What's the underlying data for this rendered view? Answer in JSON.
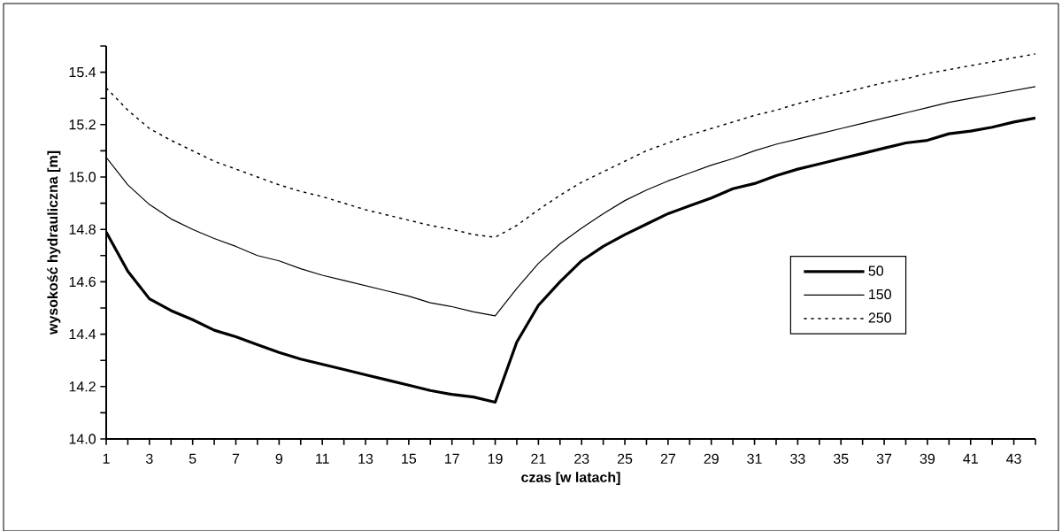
{
  "chart_data": {
    "type": "line",
    "xlabel": "czas [w latach]",
    "ylabel": "wysokość hydrauliczna [m]",
    "x": [
      1,
      2,
      3,
      4,
      5,
      6,
      7,
      8,
      9,
      10,
      11,
      12,
      13,
      14,
      15,
      16,
      17,
      18,
      19,
      20,
      21,
      22,
      23,
      24,
      25,
      26,
      27,
      28,
      29,
      30,
      31,
      32,
      33,
      34,
      35,
      36,
      37,
      38,
      39,
      40,
      41,
      42,
      43,
      44
    ],
    "xlim": [
      1,
      44
    ],
    "xticks": [
      1,
      {
        "value": 2,
        "label": null
      },
      3,
      {
        "value": 4,
        "label": null
      },
      5,
      {
        "value": 6,
        "label": null
      },
      7,
      {
        "value": 8,
        "label": null
      },
      9,
      {
        "value": 10,
        "label": null
      },
      11,
      {
        "value": 12,
        "label": null
      },
      13,
      {
        "value": 14,
        "label": null
      },
      15,
      {
        "value": 16,
        "label": null
      },
      17,
      {
        "value": 18,
        "label": null
      },
      19,
      {
        "value": 20,
        "label": null
      },
      21,
      {
        "value": 22,
        "label": null
      },
      23,
      {
        "value": 24,
        "label": null
      },
      25,
      {
        "value": 26,
        "label": null
      },
      27,
      {
        "value": 28,
        "label": null
      },
      29,
      {
        "value": 30,
        "label": null
      },
      31,
      {
        "value": 32,
        "label": null
      },
      33,
      {
        "value": 34,
        "label": null
      },
      35,
      {
        "value": 36,
        "label": null
      },
      37,
      {
        "value": 38,
        "label": null
      },
      39,
      {
        "value": 40,
        "label": null
      },
      41,
      {
        "value": 42,
        "label": null
      },
      43,
      {
        "value": 44,
        "label": null
      }
    ],
    "ylim": [
      14.0,
      15.5
    ],
    "yticks": [
      {
        "value": 14.0,
        "label": "14.0"
      },
      {
        "value": 14.1,
        "label": null
      },
      {
        "value": 14.2,
        "label": "14.2"
      },
      {
        "value": 14.3,
        "label": null
      },
      {
        "value": 14.4,
        "label": "14.4"
      },
      {
        "value": 14.5,
        "label": null
      },
      {
        "value": 14.6,
        "label": "14.6"
      },
      {
        "value": 14.7,
        "label": null
      },
      {
        "value": 14.8,
        "label": "14.8"
      },
      {
        "value": 14.9,
        "label": null
      },
      {
        "value": 15.0,
        "label": "15.0"
      },
      {
        "value": 15.1,
        "label": null
      },
      {
        "value": 15.2,
        "label": "15.2"
      },
      {
        "value": 15.3,
        "label": null
      },
      {
        "value": 15.4,
        "label": "15.4"
      },
      {
        "value": 15.5,
        "label": null
      }
    ],
    "legend": "right",
    "grid": false,
    "series": [
      {
        "name": "50",
        "color": "#000000",
        "line_style": "solid",
        "values": [
          14.79,
          14.64,
          14.535,
          14.49,
          14.455,
          14.415,
          14.39,
          14.36,
          14.33,
          14.305,
          14.285,
          14.265,
          14.245,
          14.225,
          14.205,
          14.185,
          14.17,
          14.16,
          14.14,
          14.37,
          14.51,
          14.6,
          14.68,
          14.735,
          14.78,
          14.82,
          14.86,
          14.89,
          14.92,
          14.955,
          14.975,
          15.005,
          15.03,
          15.05,
          15.07,
          15.09,
          15.11,
          15.13,
          15.14,
          15.165,
          15.175,
          15.19,
          15.21,
          15.225
        ]
      },
      {
        "name": "150",
        "color": "#000000",
        "line_style": "solid",
        "values": [
          15.075,
          14.97,
          14.895,
          14.84,
          14.8,
          14.765,
          14.735,
          14.7,
          14.68,
          14.65,
          14.625,
          14.605,
          14.585,
          14.565,
          14.545,
          14.52,
          14.505,
          14.485,
          14.47,
          14.575,
          14.67,
          14.745,
          14.805,
          14.86,
          14.91,
          14.95,
          14.985,
          15.015,
          15.045,
          15.07,
          15.1,
          15.125,
          15.145,
          15.165,
          15.185,
          15.205,
          15.225,
          15.245,
          15.265,
          15.285,
          15.3,
          15.315,
          15.33,
          15.345
        ]
      },
      {
        "name": "250",
        "color": "#000000",
        "line_style": "dotted",
        "values": [
          15.34,
          15.255,
          15.185,
          15.14,
          15.1,
          15.06,
          15.03,
          15.0,
          14.97,
          14.945,
          14.925,
          14.9,
          14.875,
          14.855,
          14.835,
          14.815,
          14.8,
          14.78,
          14.77,
          14.815,
          14.875,
          14.93,
          14.98,
          15.02,
          15.06,
          15.1,
          15.13,
          15.16,
          15.185,
          15.21,
          15.235,
          15.255,
          15.28,
          15.3,
          15.32,
          15.34,
          15.36,
          15.375,
          15.395,
          15.41,
          15.425,
          15.44,
          15.455,
          15.47
        ]
      }
    ]
  }
}
